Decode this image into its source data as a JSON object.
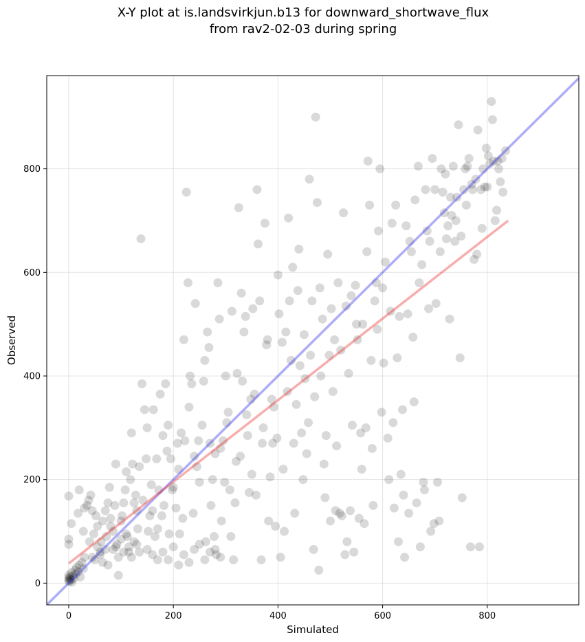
{
  "chart_data": {
    "type": "scatter",
    "title_line1": "X-Y plot at is.landsvirkjun.b13 for downward_shortwave_flux",
    "title_line2": "from rav2-02-03 during spring",
    "xlabel": "Simulated",
    "ylabel": "Observed",
    "xlim": [
      -42,
      975
    ],
    "ylim": [
      -42,
      980
    ],
    "xticks": [
      0,
      200,
      400,
      600,
      800
    ],
    "yticks": [
      0,
      200,
      400,
      600,
      800
    ],
    "grid": true,
    "colors": {
      "points": "#000000",
      "one_to_one": "#3333ee",
      "fit": "#ee3333"
    },
    "one_to_one_line": {
      "x": [
        -42,
        975
      ],
      "y": [
        -42,
        975
      ]
    },
    "fit_line": {
      "x": [
        0,
        840
      ],
      "y": [
        38,
        700
      ]
    },
    "points": [
      [
        0,
        5
      ],
      [
        0,
        10
      ],
      [
        0,
        15
      ],
      [
        1,
        3
      ],
      [
        2,
        8
      ],
      [
        3,
        12
      ],
      [
        4,
        6
      ],
      [
        5,
        20
      ],
      [
        6,
        2
      ],
      [
        8,
        14
      ],
      [
        10,
        9
      ],
      [
        12,
        25
      ],
      [
        14,
        18
      ],
      [
        15,
        30
      ],
      [
        18,
        22
      ],
      [
        20,
        35
      ],
      [
        22,
        12
      ],
      [
        25,
        40
      ],
      [
        28,
        28
      ],
      [
        30,
        50
      ],
      [
        0,
        168
      ],
      [
        0,
        85
      ],
      [
        0,
        75
      ],
      [
        5,
        115
      ],
      [
        18,
        135
      ],
      [
        20,
        180
      ],
      [
        28,
        100
      ],
      [
        30,
        145
      ],
      [
        35,
        150
      ],
      [
        38,
        160
      ],
      [
        42,
        170
      ],
      [
        45,
        140
      ],
      [
        48,
        95
      ],
      [
        52,
        130
      ],
      [
        55,
        110
      ],
      [
        60,
        60
      ],
      [
        62,
        80
      ],
      [
        65,
        120
      ],
      [
        70,
        140
      ],
      [
        72,
        90
      ],
      [
        75,
        155
      ],
      [
        78,
        185
      ],
      [
        80,
        125
      ],
      [
        85,
        100
      ],
      [
        88,
        150
      ],
      [
        90,
        230
      ],
      [
        92,
        75
      ],
      [
        95,
        15
      ],
      [
        100,
        120
      ],
      [
        102,
        130
      ],
      [
        105,
        155
      ],
      [
        108,
        180
      ],
      [
        110,
        215
      ],
      [
        112,
        90
      ],
      [
        115,
        60
      ],
      [
        118,
        200
      ],
      [
        120,
        290
      ],
      [
        122,
        230
      ],
      [
        125,
        155
      ],
      [
        128,
        170
      ],
      [
        130,
        140
      ],
      [
        132,
        105
      ],
      [
        135,
        225
      ],
      [
        138,
        665
      ],
      [
        140,
        385
      ],
      [
        142,
        160
      ],
      [
        145,
        335
      ],
      [
        148,
        240
      ],
      [
        150,
        300
      ],
      [
        152,
        100
      ],
      [
        155,
        130
      ],
      [
        158,
        190
      ],
      [
        160,
        140
      ],
      [
        162,
        335
      ],
      [
        165,
        90
      ],
      [
        168,
        240
      ],
      [
        170,
        105
      ],
      [
        172,
        180
      ],
      [
        175,
        365
      ],
      [
        178,
        130
      ],
      [
        180,
        285
      ],
      [
        182,
        150
      ],
      [
        185,
        385
      ],
      [
        188,
        255
      ],
      [
        190,
        305
      ],
      [
        192,
        95
      ],
      [
        195,
        240
      ],
      [
        198,
        180
      ],
      [
        200,
        185
      ],
      [
        205,
        145
      ],
      [
        208,
        270
      ],
      [
        210,
        220
      ],
      [
        212,
        95
      ],
      [
        215,
        290
      ],
      [
        218,
        125
      ],
      [
        220,
        470
      ],
      [
        222,
        275
      ],
      [
        225,
        755
      ],
      [
        228,
        580
      ],
      [
        230,
        340
      ],
      [
        232,
        400
      ],
      [
        235,
        385
      ],
      [
        238,
        135
      ],
      [
        240,
        245
      ],
      [
        242,
        540
      ],
      [
        245,
        225
      ],
      [
        248,
        275
      ],
      [
        250,
        195
      ],
      [
        255,
        305
      ],
      [
        258,
        390
      ],
      [
        260,
        430
      ],
      [
        262,
        80
      ],
      [
        265,
        485
      ],
      [
        268,
        455
      ],
      [
        270,
        270
      ],
      [
        272,
        150
      ],
      [
        275,
        200
      ],
      [
        278,
        90
      ],
      [
        280,
        250
      ],
      [
        282,
        55
      ],
      [
        285,
        580
      ],
      [
        288,
        510
      ],
      [
        290,
        260
      ],
      [
        292,
        120
      ],
      [
        295,
        275
      ],
      [
        298,
        195
      ],
      [
        300,
        400
      ],
      [
        302,
        310
      ],
      [
        305,
        330
      ],
      [
        308,
        180
      ],
      [
        310,
        90
      ],
      [
        312,
        525
      ],
      [
        315,
        45
      ],
      [
        318,
        155
      ],
      [
        320,
        235
      ],
      [
        322,
        405
      ],
      [
        325,
        725
      ],
      [
        328,
        245
      ],
      [
        330,
        560
      ],
      [
        332,
        390
      ],
      [
        335,
        485
      ],
      [
        338,
        515
      ],
      [
        340,
        325
      ],
      [
        342,
        285
      ],
      [
        345,
        175
      ],
      [
        348,
        355
      ],
      [
        350,
        210
      ],
      [
        352,
        530
      ],
      [
        355,
        365
      ],
      [
        358,
        170
      ],
      [
        360,
        760
      ],
      [
        362,
        655
      ],
      [
        365,
        545
      ],
      [
        368,
        45
      ],
      [
        370,
        270
      ],
      [
        372,
        300
      ],
      [
        375,
        695
      ],
      [
        378,
        460
      ],
      [
        380,
        470
      ],
      [
        382,
        120
      ],
      [
        385,
        205
      ],
      [
        388,
        355
      ],
      [
        390,
        270
      ],
      [
        392,
        340
      ],
      [
        395,
        110
      ],
      [
        398,
        280
      ],
      [
        400,
        595
      ],
      [
        402,
        520
      ],
      [
        405,
        50
      ],
      [
        408,
        465
      ],
      [
        410,
        220
      ],
      [
        412,
        100
      ],
      [
        415,
        485
      ],
      [
        418,
        370
      ],
      [
        420,
        705
      ],
      [
        422,
        545
      ],
      [
        425,
        430
      ],
      [
        428,
        610
      ],
      [
        430,
        270
      ],
      [
        432,
        135
      ],
      [
        435,
        345
      ],
      [
        438,
        565
      ],
      [
        440,
        645
      ],
      [
        442,
        420
      ],
      [
        445,
        290
      ],
      [
        448,
        200
      ],
      [
        450,
        480
      ],
      [
        452,
        395
      ],
      [
        455,
        250
      ],
      [
        458,
        310
      ],
      [
        460,
        780
      ],
      [
        462,
        440
      ],
      [
        465,
        545
      ],
      [
        468,
        65
      ],
      [
        470,
        360
      ],
      [
        472,
        900
      ],
      [
        475,
        735
      ],
      [
        478,
        25
      ],
      [
        480,
        570
      ],
      [
        482,
        400
      ],
      [
        485,
        510
      ],
      [
        488,
        230
      ],
      [
        490,
        165
      ],
      [
        492,
        285
      ],
      [
        495,
        635
      ],
      [
        498,
        440
      ],
      [
        500,
        120
      ],
      [
        502,
        530
      ],
      [
        505,
        370
      ],
      [
        508,
        470
      ],
      [
        510,
        140
      ],
      [
        512,
        265
      ],
      [
        515,
        580
      ],
      [
        518,
        135
      ],
      [
        520,
        450
      ],
      [
        522,
        130
      ],
      [
        525,
        715
      ],
      [
        528,
        55
      ],
      [
        530,
        535
      ],
      [
        532,
        80
      ],
      [
        535,
        405
      ],
      [
        538,
        140
      ],
      [
        540,
        555
      ],
      [
        542,
        305
      ],
      [
        545,
        60
      ],
      [
        548,
        575
      ],
      [
        550,
        500
      ],
      [
        552,
        470
      ],
      [
        555,
        125
      ],
      [
        558,
        290
      ],
      [
        560,
        220
      ],
      [
        562,
        500
      ],
      [
        565,
        115
      ],
      [
        568,
        300
      ],
      [
        570,
        640
      ],
      [
        572,
        815
      ],
      [
        575,
        730
      ],
      [
        578,
        430
      ],
      [
        580,
        260
      ],
      [
        582,
        150
      ],
      [
        585,
        545
      ],
      [
        588,
        580
      ],
      [
        590,
        490
      ],
      [
        592,
        680
      ],
      [
        595,
        800
      ],
      [
        598,
        330
      ],
      [
        600,
        570
      ],
      [
        602,
        425
      ],
      [
        605,
        620
      ],
      [
        610,
        280
      ],
      [
        612,
        200
      ],
      [
        615,
        525
      ],
      [
        618,
        695
      ],
      [
        620,
        310
      ],
      [
        622,
        145
      ],
      [
        625,
        730
      ],
      [
        628,
        435
      ],
      [
        630,
        80
      ],
      [
        632,
        515
      ],
      [
        635,
        210
      ],
      [
        638,
        335
      ],
      [
        640,
        170
      ],
      [
        642,
        50
      ],
      [
        645,
        690
      ],
      [
        648,
        520
      ],
      [
        650,
        135
      ],
      [
        652,
        660
      ],
      [
        655,
        640
      ],
      [
        658,
        475
      ],
      [
        660,
        350
      ],
      [
        662,
        740
      ],
      [
        665,
        155
      ],
      [
        668,
        805
      ],
      [
        670,
        580
      ],
      [
        672,
        70
      ],
      [
        675,
        615
      ],
      [
        678,
        195
      ],
      [
        680,
        180
      ],
      [
        682,
        760
      ],
      [
        685,
        680
      ],
      [
        688,
        530
      ],
      [
        690,
        660
      ],
      [
        692,
        100
      ],
      [
        695,
        820
      ],
      [
        698,
        115
      ],
      [
        700,
        760
      ],
      [
        702,
        540
      ],
      [
        705,
        195
      ],
      [
        708,
        120
      ],
      [
        710,
        640
      ],
      [
        712,
        800
      ],
      [
        715,
        755
      ],
      [
        718,
        715
      ],
      [
        720,
        790
      ],
      [
        722,
        665
      ],
      [
        725,
        690
      ],
      [
        728,
        510
      ],
      [
        730,
        745
      ],
      [
        732,
        710
      ],
      [
        735,
        805
      ],
      [
        738,
        660
      ],
      [
        740,
        700
      ],
      [
        742,
        745
      ],
      [
        745,
        885
      ],
      [
        748,
        435
      ],
      [
        750,
        670
      ],
      [
        752,
        165
      ],
      [
        755,
        760
      ],
      [
        758,
        800
      ],
      [
        760,
        730
      ],
      [
        762,
        805
      ],
      [
        765,
        820
      ],
      [
        768,
        70
      ],
      [
        770,
        770
      ],
      [
        772,
        760
      ],
      [
        775,
        625
      ],
      [
        778,
        780
      ],
      [
        780,
        635
      ],
      [
        782,
        875
      ],
      [
        785,
        70
      ],
      [
        788,
        760
      ],
      [
        790,
        685
      ],
      [
        792,
        800
      ],
      [
        795,
        765
      ],
      [
        798,
        840
      ],
      [
        800,
        765
      ],
      [
        802,
        825
      ],
      [
        805,
        810
      ],
      [
        808,
        930
      ],
      [
        810,
        895
      ],
      [
        812,
        815
      ],
      [
        815,
        700
      ],
      [
        818,
        720
      ],
      [
        820,
        815
      ],
      [
        822,
        800
      ],
      [
        825,
        775
      ],
      [
        828,
        820
      ],
      [
        830,
        755
      ],
      [
        835,
        835
      ],
      [
        40,
        80
      ],
      [
        45,
        50
      ],
      [
        50,
        45
      ],
      [
        55,
        70
      ],
      [
        60,
        55
      ],
      [
        65,
        40
      ],
      [
        70,
        65
      ],
      [
        75,
        35
      ],
      [
        80,
        110
      ],
      [
        85,
        65
      ],
      [
        90,
        70
      ],
      [
        95,
        50
      ],
      [
        100,
        85
      ],
      [
        105,
        60
      ],
      [
        110,
        95
      ],
      [
        115,
        70
      ],
      [
        120,
        50
      ],
      [
        125,
        80
      ],
      [
        130,
        75
      ],
      [
        135,
        60
      ],
      [
        150,
        65
      ],
      [
        160,
        55
      ],
      [
        170,
        45
      ],
      [
        180,
        60
      ],
      [
        190,
        45
      ],
      [
        200,
        70
      ],
      [
        210,
        35
      ],
      [
        220,
        55
      ],
      [
        230,
        40
      ],
      [
        240,
        65
      ],
      [
        250,
        75
      ],
      [
        260,
        45
      ],
      [
        270,
        60
      ],
      [
        280,
        65
      ],
      [
        290,
        50
      ]
    ]
  }
}
